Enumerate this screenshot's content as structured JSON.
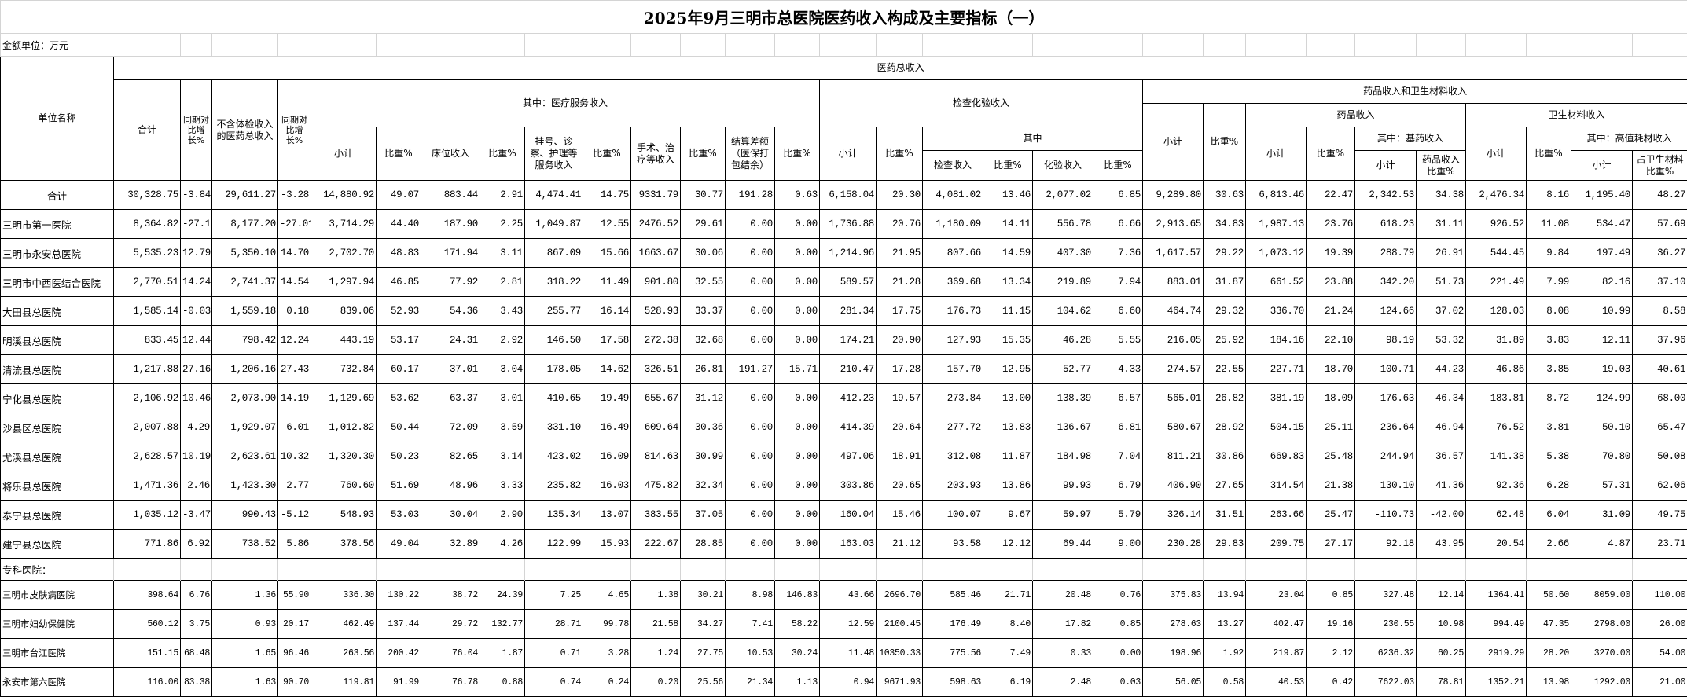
{
  "title": "2025年9月三明市总医院医药收入构成及主要指标（一）",
  "unit_label": "金额单位：万元",
  "headers": {
    "name": "单位名称",
    "total_income": "医药总收入",
    "sum": "合计",
    "yoy": "同期对比增长%",
    "excl": "不含体检收入的医药总收入",
    "yoy2": "同期对比增长%",
    "med_service": "其中：医疗服务收入",
    "subtotal": "小计",
    "ratio": "比重%",
    "bed": "床位收入",
    "reg": "挂号、诊察、护理等服务收入",
    "surgery": "手术、治疗等收入",
    "settle": "结算差额（医保打包结余）",
    "exam": "检查化验收入",
    "of_which": "其中",
    "exam_inc": "检查收入",
    "lab_inc": "化验收入",
    "drug_mat": "药品收入和卫生材料收入",
    "drug": "药品收入",
    "basic": "其中：基药收入",
    "drug_ratio": "药品收入比重%",
    "material": "卫生材料收入",
    "high": "其中：高值耗材收入",
    "mat_ratio": "占卫生材料比重%"
  },
  "rows": [
    {
      "name": "合计",
      "values": [
        "30,328.75",
        "-3.84",
        "29,611.27",
        "-3.28",
        "14,880.92",
        "49.07",
        "883.44",
        "2.91",
        "4,474.41",
        "14.75",
        "9331.79",
        "30.77",
        "191.28",
        "0.63",
        "6,158.04",
        "20.30",
        "4,081.02",
        "13.46",
        "2,077.02",
        "6.85",
        "9,289.80",
        "30.63",
        "6,813.46",
        "22.47",
        "2,342.53",
        "34.38",
        "2,476.34",
        "8.16",
        "1,195.40",
        "48.27"
      ]
    },
    {
      "name": "三明市第一医院",
      "values": [
        "8,364.82",
        "-27.10",
        "8,177.20",
        "-27.01",
        "3,714.29",
        "44.40",
        "187.90",
        "2.25",
        "1,049.87",
        "12.55",
        "2476.52",
        "29.61",
        "0.00",
        "0.00",
        "1,736.88",
        "20.76",
        "1,180.09",
        "14.11",
        "556.78",
        "6.66",
        "2,913.65",
        "34.83",
        "1,987.13",
        "23.76",
        "618.23",
        "31.11",
        "926.52",
        "11.08",
        "534.47",
        "57.69"
      ]
    },
    {
      "name": "三明市永安总医院",
      "values": [
        "5,535.23",
        "12.79",
        "5,350.10",
        "14.70",
        "2,702.70",
        "48.83",
        "171.94",
        "3.11",
        "867.09",
        "15.66",
        "1663.67",
        "30.06",
        "0.00",
        "0.00",
        "1,214.96",
        "21.95",
        "807.66",
        "14.59",
        "407.30",
        "7.36",
        "1,617.57",
        "29.22",
        "1,073.12",
        "19.39",
        "288.79",
        "26.91",
        "544.45",
        "9.84",
        "197.49",
        "36.27"
      ]
    },
    {
      "name": "三明市中西医结合医院",
      "values": [
        "2,770.51",
        "14.24",
        "2,741.37",
        "14.54",
        "1,297.94",
        "46.85",
        "77.92",
        "2.81",
        "318.22",
        "11.49",
        "901.80",
        "32.55",
        "0.00",
        "0.00",
        "589.57",
        "21.28",
        "369.68",
        "13.34",
        "219.89",
        "7.94",
        "883.01",
        "31.87",
        "661.52",
        "23.88",
        "342.20",
        "51.73",
        "221.49",
        "7.99",
        "82.16",
        "37.10"
      ]
    },
    {
      "name": "大田县总医院",
      "values": [
        "1,585.14",
        "-0.03",
        "1,559.18",
        "0.18",
        "839.06",
        "52.93",
        "54.36",
        "3.43",
        "255.77",
        "16.14",
        "528.93",
        "33.37",
        "0.00",
        "0.00",
        "281.34",
        "17.75",
        "176.73",
        "11.15",
        "104.62",
        "6.60",
        "464.74",
        "29.32",
        "336.70",
        "21.24",
        "124.66",
        "37.02",
        "128.03",
        "8.08",
        "10.99",
        "8.58"
      ]
    },
    {
      "name": "明溪县总医院",
      "values": [
        "833.45",
        "12.44",
        "798.42",
        "12.24",
        "443.19",
        "53.17",
        "24.31",
        "2.92",
        "146.50",
        "17.58",
        "272.38",
        "32.68",
        "0.00",
        "0.00",
        "174.21",
        "20.90",
        "127.93",
        "15.35",
        "46.28",
        "5.55",
        "216.05",
        "25.92",
        "184.16",
        "22.10",
        "98.19",
        "53.32",
        "31.89",
        "3.83",
        "12.11",
        "37.96"
      ]
    },
    {
      "name": "清流县总医院",
      "values": [
        "1,217.88",
        "27.16",
        "1,206.16",
        "27.43",
        "732.84",
        "60.17",
        "37.01",
        "3.04",
        "178.05",
        "14.62",
        "326.51",
        "26.81",
        "191.27",
        "15.71",
        "210.47",
        "17.28",
        "157.70",
        "12.95",
        "52.77",
        "4.33",
        "274.57",
        "22.55",
        "227.71",
        "18.70",
        "100.71",
        "44.23",
        "46.86",
        "3.85",
        "19.03",
        "40.61"
      ]
    },
    {
      "name": "宁化县总医院",
      "values": [
        "2,106.92",
        "10.46",
        "2,073.90",
        "14.19",
        "1,129.69",
        "53.62",
        "63.37",
        "3.01",
        "410.65",
        "19.49",
        "655.67",
        "31.12",
        "0.00",
        "0.00",
        "412.23",
        "19.57",
        "273.84",
        "13.00",
        "138.39",
        "6.57",
        "565.01",
        "26.82",
        "381.19",
        "18.09",
        "176.63",
        "46.34",
        "183.81",
        "8.72",
        "124.99",
        "68.00"
      ]
    },
    {
      "name": "沙县区总医院",
      "values": [
        "2,007.88",
        "4.29",
        "1,929.07",
        "6.01",
        "1,012.82",
        "50.44",
        "72.09",
        "3.59",
        "331.10",
        "16.49",
        "609.64",
        "30.36",
        "0.00",
        "0.00",
        "414.39",
        "20.64",
        "277.72",
        "13.83",
        "136.67",
        "6.81",
        "580.67",
        "28.92",
        "504.15",
        "25.11",
        "236.64",
        "46.94",
        "76.52",
        "3.81",
        "50.10",
        "65.47"
      ]
    },
    {
      "name": "尤溪县总医院",
      "values": [
        "2,628.57",
        "10.19",
        "2,623.61",
        "10.32",
        "1,320.30",
        "50.23",
        "82.65",
        "3.14",
        "423.02",
        "16.09",
        "814.63",
        "30.99",
        "0.00",
        "0.00",
        "497.06",
        "18.91",
        "312.08",
        "11.87",
        "184.98",
        "7.04",
        "811.21",
        "30.86",
        "669.83",
        "25.48",
        "244.94",
        "36.57",
        "141.38",
        "5.38",
        "70.80",
        "50.08"
      ]
    },
    {
      "name": "将乐县总医院",
      "values": [
        "1,471.36",
        "2.46",
        "1,423.30",
        "2.77",
        "760.60",
        "51.69",
        "48.96",
        "3.33",
        "235.82",
        "16.03",
        "475.82",
        "32.34",
        "0.00",
        "0.00",
        "303.86",
        "20.65",
        "203.93",
        "13.86",
        "99.93",
        "6.79",
        "406.90",
        "27.65",
        "314.54",
        "21.38",
        "130.10",
        "41.36",
        "92.36",
        "6.28",
        "57.31",
        "62.06"
      ]
    },
    {
      "name": "泰宁县总医院",
      "values": [
        "1,035.12",
        "-3.47",
        "990.43",
        "-5.12",
        "548.93",
        "53.03",
        "30.04",
        "2.90",
        "135.34",
        "13.07",
        "383.55",
        "37.05",
        "0.00",
        "0.00",
        "160.04",
        "15.46",
        "100.07",
        "9.67",
        "59.97",
        "5.79",
        "326.14",
        "31.51",
        "263.66",
        "25.47",
        "-110.73",
        "-42.00",
        "62.48",
        "6.04",
        "31.09",
        "49.75"
      ]
    },
    {
      "name": "建宁县总医院",
      "values": [
        "771.86",
        "6.92",
        "738.52",
        "5.86",
        "378.56",
        "49.04",
        "32.89",
        "4.26",
        "122.99",
        "15.93",
        "222.67",
        "28.85",
        "0.00",
        "0.00",
        "163.03",
        "21.12",
        "93.58",
        "12.12",
        "69.44",
        "9.00",
        "230.28",
        "29.83",
        "209.75",
        "27.17",
        "92.18",
        "43.95",
        "20.54",
        "2.66",
        "4.87",
        "23.71"
      ]
    }
  ],
  "section_label": "专科医院：",
  "special_rows": [
    {
      "name": "三明市皮肤病医院",
      "values": [
        "398.64",
        "6.76",
        "1.36",
        "55.90",
        "336.30",
        "130.22",
        "38.72",
        "24.39",
        "7.25",
        "4.65",
        "1.38",
        "30.21",
        "8.98",
        "146.83",
        "43.66",
        "2696.70",
        "585.46",
        "21.71",
        "20.48",
        "0.76",
        "375.83",
        "13.94",
        "23.04",
        "0.85",
        "327.48",
        "12.14",
        "1364.41",
        "50.60",
        "8059.00",
        "110.00"
      ]
    },
    {
      "name": "三明市妇幼保健院",
      "values": [
        "560.12",
        "3.75",
        "0.93",
        "20.17",
        "462.49",
        "137.44",
        "29.72",
        "132.77",
        "28.71",
        "99.78",
        "21.58",
        "34.27",
        "7.41",
        "58.22",
        "12.59",
        "2100.45",
        "176.49",
        "8.40",
        "17.82",
        "0.85",
        "278.63",
        "13.27",
        "402.47",
        "19.16",
        "230.55",
        "10.98",
        "994.49",
        "47.35",
        "2798.00",
        "26.00"
      ]
    },
    {
      "name": "三明市台江医院",
      "values": [
        "151.15",
        "68.48",
        "1.65",
        "96.46",
        "263.56",
        "200.42",
        "76.04",
        "1.87",
        "0.71",
        "3.28",
        "1.24",
        "27.75",
        "10.53",
        "30.24",
        "11.48",
        "10350.33",
        "775.56",
        "7.49",
        "0.33",
        "0.00",
        "198.96",
        "1.92",
        "219.87",
        "2.12",
        "6236.32",
        "60.25",
        "2919.29",
        "28.20",
        "3270.00",
        "54.00"
      ]
    },
    {
      "name": "永安市第六医院",
      "values": [
        "116.00",
        "83.38",
        "1.63",
        "90.70",
        "119.81",
        "91.99",
        "76.78",
        "0.88",
        "0.74",
        "0.24",
        "0.20",
        "25.56",
        "21.34",
        "1.13",
        "0.94",
        "9671.93",
        "598.63",
        "6.19",
        "2.48",
        "0.03",
        "56.05",
        "0.58",
        "40.53",
        "0.42",
        "7622.03",
        "78.81",
        "1352.21",
        "13.98",
        "1292.00",
        "21.00"
      ]
    }
  ]
}
